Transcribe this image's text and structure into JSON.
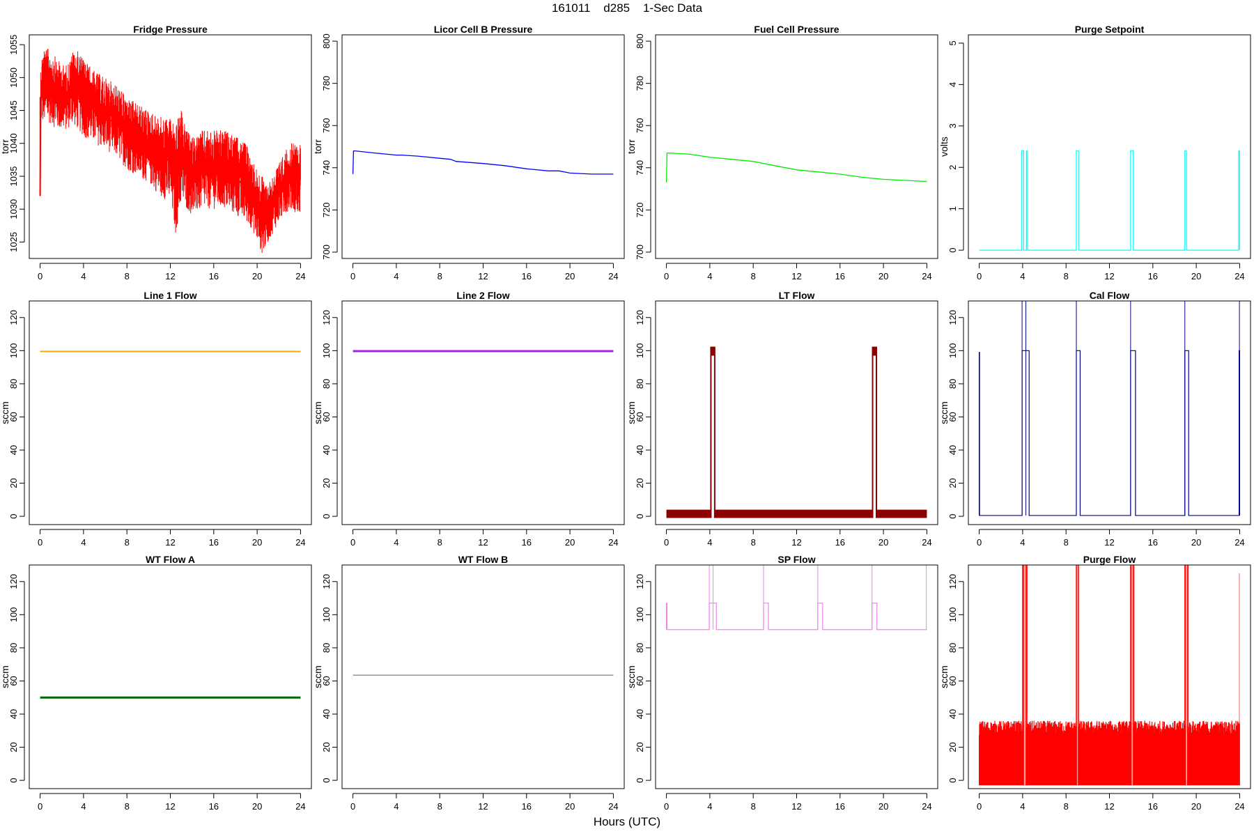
{
  "header": {
    "title": "161011    d285    1-Sec Data"
  },
  "footer": {
    "xlabel": "Hours (UTC)"
  },
  "chart_data": [
    {
      "type": "line",
      "title": "Fridge Pressure",
      "ylabel": "torr",
      "ylim": [
        1022.5,
        1056.5
      ],
      "yticks": [
        1025,
        1030,
        1035,
        1040,
        1045,
        1050,
        1055
      ],
      "xlim": [
        -1,
        25
      ],
      "xticks": [
        0,
        4,
        8,
        12,
        16,
        20,
        24
      ],
      "color": "#ff0000",
      "style": "band",
      "series": [
        {
          "x": [
            0,
            0.05,
            0.3,
            1,
            1.5,
            2,
            2.5,
            3,
            3.5,
            4,
            5,
            6,
            7,
            8,
            9,
            10,
            11,
            12,
            12.5,
            13,
            13.5,
            14,
            15,
            16,
            17,
            18,
            19,
            19.5,
            20,
            20.5,
            21,
            22,
            23,
            24
          ],
          "y": [
            1032,
            1047,
            1048,
            1048,
            1047,
            1047,
            1046,
            1049,
            1048,
            1047,
            1045,
            1044,
            1043,
            1041,
            1041,
            1040,
            1039,
            1037,
            1036,
            1039,
            1036,
            1035,
            1036,
            1036,
            1035,
            1035,
            1033,
            1032,
            1030,
            1029,
            1030,
            1032,
            1034,
            1035
          ],
          "lo": [
            1032,
            1043,
            1043,
            1043,
            1042,
            1042,
            1042,
            1043,
            1042,
            1041,
            1040,
            1039,
            1038,
            1036,
            1035,
            1034,
            1032,
            1031,
            1026,
            1031,
            1030,
            1029,
            1030,
            1030,
            1030,
            1029,
            1028,
            1027,
            1025,
            1023,
            1025,
            1028,
            1030,
            1029
          ],
          "hi": [
            1032,
            1052,
            1055,
            1054,
            1053,
            1052,
            1052,
            1054,
            1054,
            1053,
            1051,
            1050,
            1049,
            1047,
            1046,
            1045,
            1044,
            1044,
            1043,
            1045,
            1042,
            1041,
            1042,
            1042,
            1042,
            1041,
            1040,
            1038,
            1036,
            1035,
            1034,
            1037,
            1040,
            1040
          ]
        }
      ]
    },
    {
      "type": "line",
      "title": "Licor Cell B Pressure",
      "ylabel": "torr",
      "ylim": [
        697,
        803
      ],
      "yticks": [
        700,
        720,
        740,
        760,
        780,
        800
      ],
      "xlim": [
        -1,
        25
      ],
      "xticks": [
        0,
        4,
        8,
        12,
        16,
        20,
        24
      ],
      "color": "#0000ff",
      "style": "line",
      "series": [
        {
          "x": [
            0,
            0.05,
            0.2,
            2,
            4,
            4.5,
            6,
            8,
            9,
            9.5,
            12,
            14,
            16,
            18,
            19,
            20,
            22,
            24
          ],
          "y": [
            737,
            748,
            748,
            747,
            746,
            746,
            745.5,
            744.5,
            744,
            743,
            742,
            741,
            739.5,
            738.5,
            738.5,
            737.5,
            737,
            737
          ]
        }
      ]
    },
    {
      "type": "line",
      "title": "Fuel Cell Pressure",
      "ylabel": "torr",
      "ylim": [
        697,
        803
      ],
      "yticks": [
        700,
        720,
        740,
        760,
        780,
        800
      ],
      "xlim": [
        -1,
        25
      ],
      "xticks": [
        0,
        4,
        8,
        12,
        16,
        20,
        24
      ],
      "color": "#00ee00",
      "style": "line",
      "series": [
        {
          "x": [
            0,
            0.05,
            0.2,
            2,
            4,
            6,
            8,
            10,
            12,
            14,
            16,
            18,
            20,
            22,
            24
          ],
          "y": [
            733,
            747,
            747,
            746.5,
            745,
            744,
            743,
            741,
            739,
            738,
            737,
            735.5,
            734.5,
            734,
            733.5
          ]
        }
      ]
    },
    {
      "type": "line",
      "title": "Purge Setpoint",
      "ylabel": "volts",
      "ylim": [
        -0.2,
        5.2
      ],
      "yticks": [
        0,
        1,
        2,
        3,
        4,
        5
      ],
      "xlim": [
        -1,
        25
      ],
      "xticks": [
        0,
        4,
        8,
        12,
        16,
        20,
        24
      ],
      "color": "#00ffff",
      "style": "pulse",
      "base": 0,
      "pulses": [
        [
          3.9,
          4.1,
          2.4
        ],
        [
          4.35,
          4.45,
          2.4
        ],
        [
          8.95,
          9.15,
          2.4
        ],
        [
          13.95,
          14.2,
          2.4
        ],
        [
          18.95,
          19.1,
          2.4
        ],
        [
          23.9,
          24,
          2.4
        ]
      ]
    },
    {
      "type": "line",
      "title": "Line 1 Flow",
      "ylabel": "sccm",
      "ylim": [
        -5,
        130
      ],
      "yticks": [
        0,
        20,
        40,
        60,
        80,
        100,
        120
      ],
      "xlim": [
        -1,
        25
      ],
      "xticks": [
        0,
        4,
        8,
        12,
        16,
        20,
        24
      ],
      "color": "#ffa500",
      "style": "flat",
      "value": 99.5,
      "width": 2
    },
    {
      "type": "line",
      "title": "Line 2 Flow",
      "ylabel": "sccm",
      "ylim": [
        -5,
        130
      ],
      "yticks": [
        0,
        20,
        40,
        60,
        80,
        100,
        120
      ],
      "xlim": [
        -1,
        25
      ],
      "xticks": [
        0,
        4,
        8,
        12,
        16,
        20,
        24
      ],
      "color": "#a020f0",
      "style": "flat",
      "value": 99.7,
      "width": 3
    },
    {
      "type": "line",
      "title": "LT Flow",
      "ylabel": "sccm",
      "ylim": [
        -5,
        130
      ],
      "yticks": [
        0,
        20,
        40,
        60,
        80,
        100,
        120
      ],
      "xlim": [
        -1,
        25
      ],
      "xticks": [
        0,
        4,
        8,
        12,
        16,
        20,
        24
      ],
      "color": "#8b0000",
      "style": "bandpulse",
      "lo": -1,
      "hi": 4,
      "pulses": [
        [
          4.1,
          4.45,
          102
        ],
        [
          19.0,
          19.35,
          102
        ]
      ]
    },
    {
      "type": "line",
      "title": "Cal Flow",
      "ylabel": "sccm",
      "ylim": [
        -5,
        130
      ],
      "yticks": [
        0,
        20,
        40,
        60,
        80,
        100,
        120
      ],
      "xlim": [
        -1,
        25
      ],
      "xticks": [
        0,
        4,
        8,
        12,
        16,
        20,
        24
      ],
      "color": "#00008b",
      "style": "pulse",
      "base": 0.5,
      "pulses": [
        [
          0,
          0.03,
          99
        ],
        [
          3.95,
          4.6,
          100
        ],
        [
          8.95,
          9.3,
          100
        ],
        [
          13.95,
          14.4,
          100
        ],
        [
          18.95,
          19.3,
          100
        ],
        [
          23.95,
          24,
          100
        ]
      ],
      "spikes": [
        [
          3.95,
          130
        ],
        [
          4.3,
          130
        ],
        [
          8.95,
          130
        ],
        [
          13.95,
          130
        ],
        [
          18.95,
          130
        ],
        [
          23.98,
          130
        ]
      ]
    },
    {
      "type": "line",
      "title": "WT Flow A",
      "ylabel": "sccm",
      "ylim": [
        -5,
        130
      ],
      "yticks": [
        0,
        20,
        40,
        60,
        80,
        100,
        120
      ],
      "xlim": [
        -1,
        25
      ],
      "xticks": [
        0,
        4,
        8,
        12,
        16,
        20,
        24
      ],
      "color": "#006400",
      "style": "flat",
      "value": 50,
      "width": 3
    },
    {
      "type": "line",
      "title": "WT Flow B",
      "ylabel": "sccm",
      "ylim": [
        -5,
        130
      ],
      "yticks": [
        0,
        20,
        40,
        60,
        80,
        100,
        120
      ],
      "xlim": [
        -1,
        25
      ],
      "xticks": [
        0,
        4,
        8,
        12,
        16,
        20,
        24
      ],
      "color": "#808080",
      "style": "flat",
      "value": 63.5,
      "width": 1.2
    },
    {
      "type": "line",
      "title": "SP Flow",
      "ylabel": "sccm",
      "ylim": [
        -5,
        130
      ],
      "yticks": [
        0,
        20,
        40,
        60,
        80,
        100,
        120
      ],
      "xlim": [
        -1,
        25
      ],
      "xticks": [
        0,
        4,
        8,
        12,
        16,
        20,
        24
      ],
      "color": "#ee82ee",
      "style": "pulse",
      "base": 91,
      "pulses": [
        [
          0,
          0.05,
          107
        ],
        [
          3.95,
          4.6,
          107
        ],
        [
          8.95,
          9.4,
          107
        ],
        [
          13.95,
          14.4,
          107
        ],
        [
          18.95,
          19.4,
          107
        ]
      ],
      "spikes": [
        [
          3.95,
          130
        ],
        [
          4.3,
          130
        ],
        [
          8.95,
          130
        ],
        [
          13.95,
          130
        ],
        [
          18.95,
          130
        ],
        [
          23.95,
          130
        ]
      ]
    },
    {
      "type": "line",
      "title": "Purge Flow",
      "ylabel": "sccm",
      "ylim": [
        -5,
        130
      ],
      "yticks": [
        0,
        20,
        40,
        60,
        80,
        100,
        120
      ],
      "xlim": [
        -1,
        25
      ],
      "xticks": [
        0,
        4,
        8,
        12,
        16,
        20,
        24
      ],
      "color": "#ff0000",
      "style": "purge",
      "lo": -3,
      "hi": [
        27,
        36
      ],
      "pulses": [
        [
          3.95,
          4.45,
          130
        ],
        [
          8.9,
          9.2,
          130
        ],
        [
          13.9,
          14.3,
          130
        ],
        [
          18.9,
          19.3,
          130
        ],
        [
          23.95,
          24,
          125
        ]
      ]
    }
  ]
}
